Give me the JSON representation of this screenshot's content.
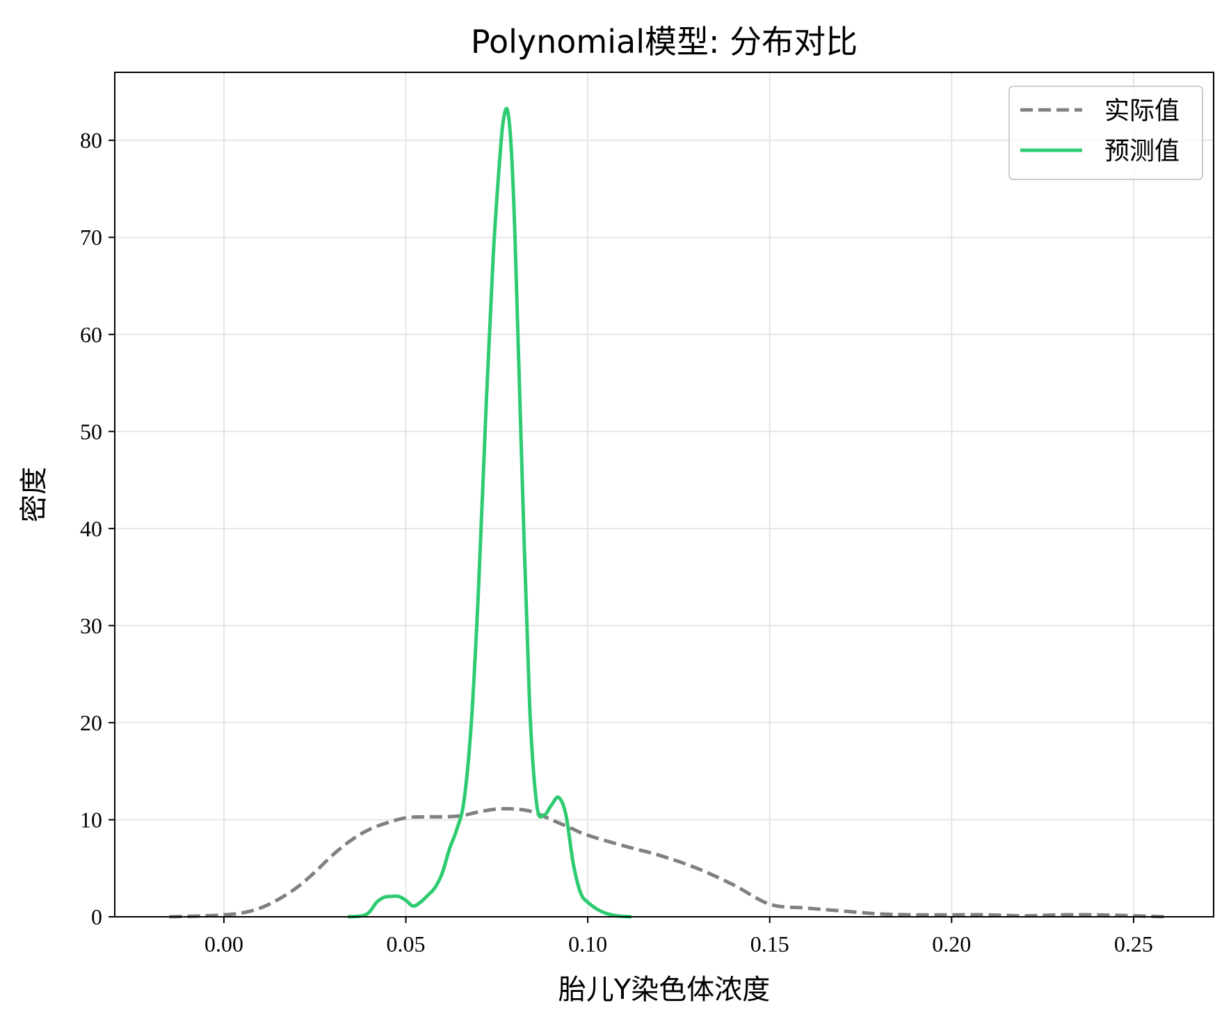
{
  "chart_data": {
    "type": "line",
    "title": "Polynomial模型: 分布对比",
    "xlabel": "胎儿Y染色体浓度",
    "ylabel": "密度",
    "xlim": [
      -0.03,
      0.272
    ],
    "ylim": [
      0,
      87
    ],
    "xticks": [
      0.0,
      0.05,
      0.1,
      0.15,
      0.2,
      0.25
    ],
    "xtick_labels": [
      "0.00",
      "0.05",
      "0.10",
      "0.15",
      "0.20",
      "0.25"
    ],
    "yticks": [
      0,
      10,
      20,
      30,
      40,
      50,
      60,
      70,
      80
    ],
    "ytick_labels": [
      "0",
      "10",
      "20",
      "30",
      "40",
      "50",
      "60",
      "70",
      "80"
    ],
    "grid": true,
    "legend_position": "top-right",
    "series": [
      {
        "name": "实际值",
        "color": "#808080",
        "style": "dashed",
        "x": [
          -0.015,
          -0.005,
          0.0,
          0.005,
          0.01,
          0.015,
          0.02,
          0.025,
          0.03,
          0.035,
          0.04,
          0.045,
          0.05,
          0.055,
          0.06,
          0.065,
          0.07,
          0.075,
          0.08,
          0.085,
          0.09,
          0.095,
          0.1,
          0.11,
          0.12,
          0.13,
          0.14,
          0.15,
          0.16,
          0.17,
          0.18,
          0.19,
          0.2,
          0.21,
          0.22,
          0.23,
          0.24,
          0.25,
          0.259
        ],
        "y": [
          0.0,
          0.1,
          0.2,
          0.4,
          0.9,
          1.8,
          3.0,
          4.6,
          6.4,
          7.9,
          9.0,
          9.7,
          10.2,
          10.3,
          10.3,
          10.4,
          10.8,
          11.1,
          11.1,
          10.8,
          10.0,
          9.2,
          8.4,
          7.3,
          6.3,
          5.0,
          3.3,
          1.3,
          0.9,
          0.6,
          0.3,
          0.2,
          0.2,
          0.2,
          0.1,
          0.2,
          0.2,
          0.1,
          0.0
        ]
      },
      {
        "name": "预测值",
        "color": "#2ecc71",
        "style": "solid",
        "x": [
          0.034,
          0.038,
          0.04,
          0.042,
          0.044,
          0.046,
          0.048,
          0.05,
          0.052,
          0.054,
          0.056,
          0.058,
          0.06,
          0.062,
          0.064,
          0.066,
          0.068,
          0.07,
          0.072,
          0.074,
          0.076,
          0.077,
          0.078,
          0.079,
          0.08,
          0.082,
          0.084,
          0.086,
          0.088,
          0.09,
          0.092,
          0.094,
          0.096,
          0.098,
          0.1,
          0.104,
          0.108,
          0.112
        ],
        "y": [
          0.0,
          0.1,
          0.5,
          1.5,
          2.0,
          2.1,
          2.1,
          1.7,
          1.1,
          1.5,
          2.2,
          3.0,
          4.5,
          7.0,
          9.0,
          12.0,
          20.0,
          34.0,
          52.0,
          68.0,
          79.0,
          82.5,
          83.0,
          79.0,
          70.0,
          45.0,
          22.0,
          11.5,
          10.5,
          11.5,
          12.3,
          10.5,
          5.5,
          2.5,
          1.5,
          0.5,
          0.1,
          0.0
        ]
      }
    ]
  }
}
